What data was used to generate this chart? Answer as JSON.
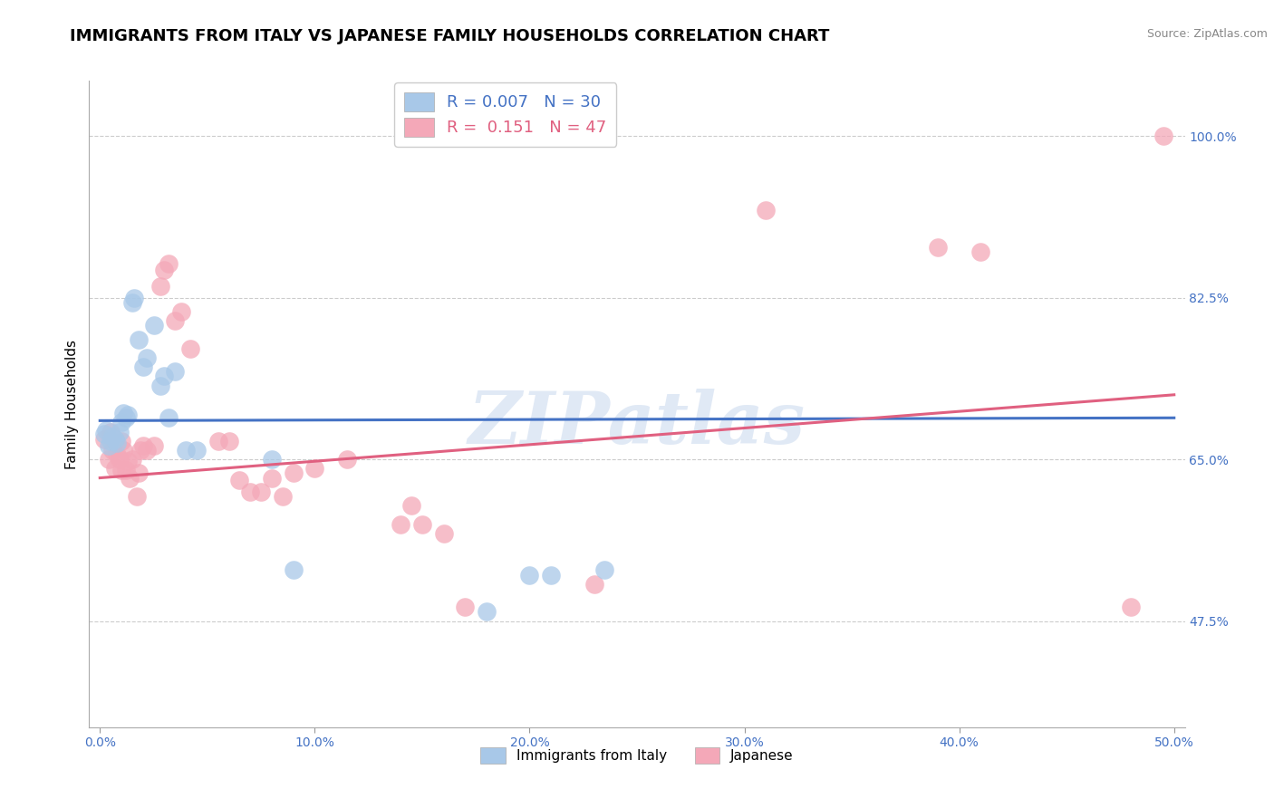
{
  "title": "IMMIGRANTS FROM ITALY VS JAPANESE FAMILY HOUSEHOLDS CORRELATION CHART",
  "source": "Source: ZipAtlas.com",
  "ylabel": "Family Households",
  "x_ticks": [
    "0.0%",
    "10.0%",
    "20.0%",
    "30.0%",
    "40.0%",
    "50.0%"
  ],
  "x_tick_vals": [
    0.0,
    0.1,
    0.2,
    0.3,
    0.4,
    0.5
  ],
  "y_ticks_right": [
    "100.0%",
    "82.5%",
    "65.0%",
    "47.5%"
  ],
  "y_tick_vals_right": [
    1.0,
    0.825,
    0.65,
    0.475
  ],
  "xlim": [
    -0.005,
    0.505
  ],
  "ylim": [
    0.36,
    1.06
  ],
  "legend_label1": "Immigrants from Italy",
  "legend_label2": "Japanese",
  "R1": "0.007",
  "N1": "30",
  "R2": "0.151",
  "N2": "47",
  "blue_color": "#a8c8e8",
  "pink_color": "#f4a8b8",
  "blue_line_color": "#4472c4",
  "pink_line_color": "#e06080",
  "watermark": "ZIPatlas",
  "blue_line": [
    [
      0.0,
      0.692
    ],
    [
      0.5,
      0.695
    ]
  ],
  "pink_line": [
    [
      0.0,
      0.63
    ],
    [
      0.5,
      0.72
    ]
  ],
  "blue_scatter": [
    [
      0.002,
      0.678
    ],
    [
      0.003,
      0.682
    ],
    [
      0.004,
      0.665
    ],
    [
      0.005,
      0.67
    ],
    [
      0.006,
      0.675
    ],
    [
      0.007,
      0.672
    ],
    [
      0.008,
      0.668
    ],
    [
      0.009,
      0.68
    ],
    [
      0.01,
      0.69
    ],
    [
      0.011,
      0.7
    ],
    [
      0.012,
      0.695
    ],
    [
      0.013,
      0.698
    ],
    [
      0.015,
      0.82
    ],
    [
      0.016,
      0.825
    ],
    [
      0.018,
      0.78
    ],
    [
      0.02,
      0.75
    ],
    [
      0.022,
      0.76
    ],
    [
      0.025,
      0.795
    ],
    [
      0.028,
      0.73
    ],
    [
      0.03,
      0.74
    ],
    [
      0.032,
      0.695
    ],
    [
      0.035,
      0.745
    ],
    [
      0.04,
      0.66
    ],
    [
      0.045,
      0.66
    ],
    [
      0.08,
      0.65
    ],
    [
      0.09,
      0.53
    ],
    [
      0.18,
      0.485
    ],
    [
      0.2,
      0.525
    ],
    [
      0.21,
      0.525
    ],
    [
      0.235,
      0.53
    ]
  ],
  "pink_scatter": [
    [
      0.002,
      0.672
    ],
    [
      0.004,
      0.65
    ],
    [
      0.005,
      0.68
    ],
    [
      0.006,
      0.66
    ],
    [
      0.007,
      0.64
    ],
    [
      0.008,
      0.655
    ],
    [
      0.009,
      0.65
    ],
    [
      0.01,
      0.67
    ],
    [
      0.01,
      0.638
    ],
    [
      0.011,
      0.66
    ],
    [
      0.012,
      0.638
    ],
    [
      0.013,
      0.648
    ],
    [
      0.014,
      0.63
    ],
    [
      0.015,
      0.65
    ],
    [
      0.017,
      0.61
    ],
    [
      0.018,
      0.635
    ],
    [
      0.019,
      0.66
    ],
    [
      0.02,
      0.665
    ],
    [
      0.022,
      0.66
    ],
    [
      0.025,
      0.665
    ],
    [
      0.028,
      0.838
    ],
    [
      0.03,
      0.855
    ],
    [
      0.032,
      0.862
    ],
    [
      0.035,
      0.8
    ],
    [
      0.038,
      0.81
    ],
    [
      0.042,
      0.77
    ],
    [
      0.055,
      0.67
    ],
    [
      0.06,
      0.67
    ],
    [
      0.065,
      0.628
    ],
    [
      0.07,
      0.615
    ],
    [
      0.075,
      0.615
    ],
    [
      0.08,
      0.63
    ],
    [
      0.085,
      0.61
    ],
    [
      0.09,
      0.635
    ],
    [
      0.1,
      0.64
    ],
    [
      0.115,
      0.65
    ],
    [
      0.14,
      0.58
    ],
    [
      0.145,
      0.6
    ],
    [
      0.15,
      0.58
    ],
    [
      0.16,
      0.57
    ],
    [
      0.17,
      0.49
    ],
    [
      0.23,
      0.515
    ],
    [
      0.31,
      0.92
    ],
    [
      0.39,
      0.88
    ],
    [
      0.41,
      0.875
    ],
    [
      0.48,
      0.49
    ],
    [
      0.495,
      1.0
    ]
  ],
  "grid_color": "#cccccc",
  "background_color": "#ffffff",
  "title_fontsize": 13,
  "axis_label_fontsize": 11,
  "tick_fontsize": 10,
  "tick_color": "#4472c4"
}
